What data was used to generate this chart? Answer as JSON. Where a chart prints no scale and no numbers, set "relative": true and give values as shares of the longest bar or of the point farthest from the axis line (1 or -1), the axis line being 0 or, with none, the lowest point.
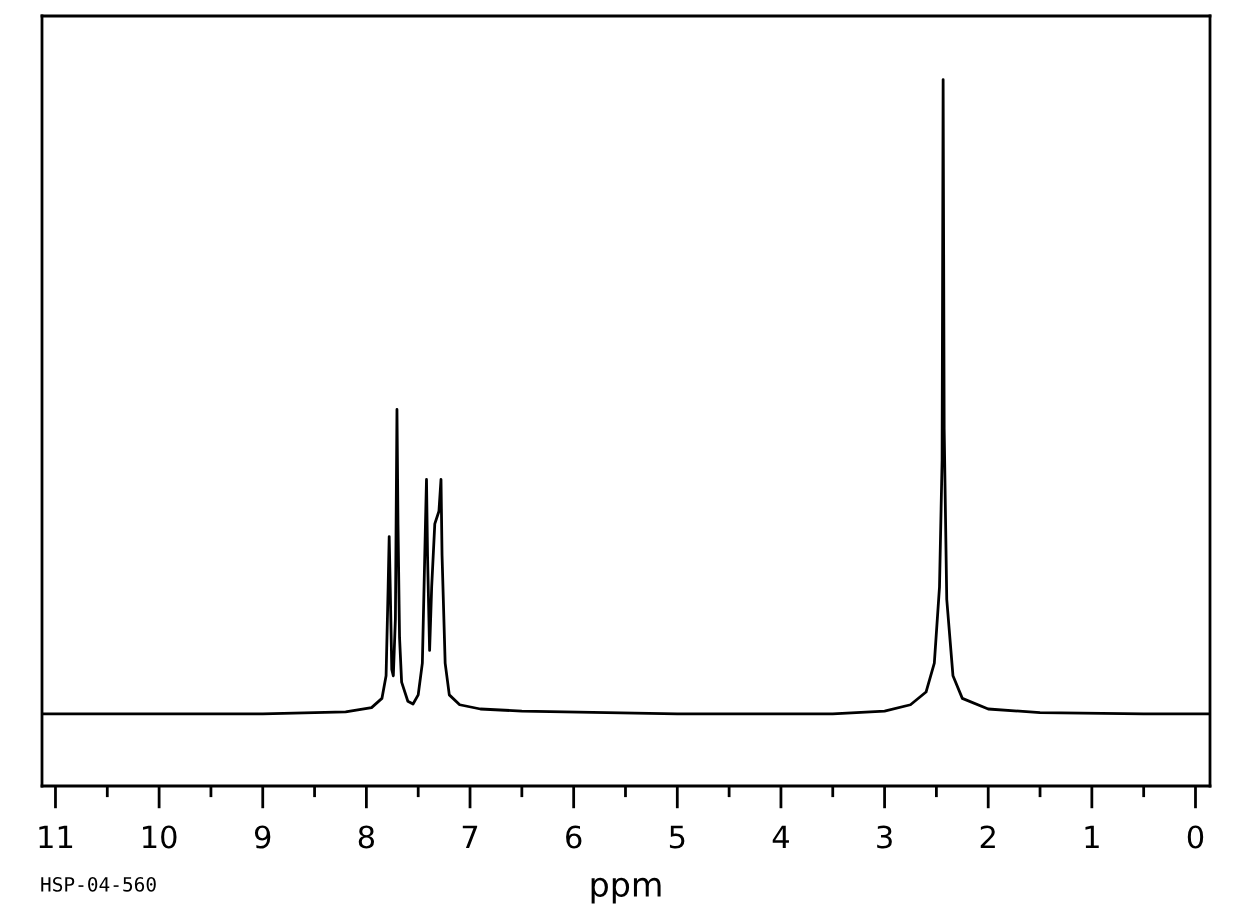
{
  "chart_data": {
    "type": "line",
    "relative": true,
    "xlabel": "ppm",
    "annotations": [
      "HSP-04-560"
    ],
    "xlim": [
      11.13,
      -0.14
    ],
    "xticks": [
      11,
      {
        "value": 10.5,
        "label": null
      },
      10,
      {
        "value": 9.5,
        "label": null
      },
      9,
      {
        "value": 8.5,
        "label": null
      },
      8,
      {
        "value": 7.5,
        "label": null
      },
      7,
      {
        "value": 6.5,
        "label": null
      },
      6,
      {
        "value": 5.5,
        "label": null
      },
      5,
      {
        "value": 4.5,
        "label": null
      },
      4,
      {
        "value": 3.5,
        "label": null
      },
      3,
      {
        "value": 2.5,
        "label": null
      },
      2,
      {
        "value": 1.5,
        "label": null
      },
      1,
      {
        "value": 0.5,
        "label": null
      },
      0
    ],
    "grid": false,
    "legend": false,
    "marker": "none",
    "line_style": "solid",
    "tick_labels": "x",
    "series": [
      {
        "color": "#000000",
        "x": [
          11.13,
          9,
          8.2,
          7.95,
          7.85,
          7.81,
          7.79,
          7.78,
          7.77,
          7.755,
          7.74,
          7.72,
          7.705,
          7.695,
          7.68,
          7.66,
          7.6,
          7.55,
          7.5,
          7.46,
          7.43,
          7.42,
          7.41,
          7.39,
          7.37,
          7.34,
          7.3,
          7.28,
          7.27,
          7.24,
          7.2,
          7.1,
          6.9,
          6.5,
          5,
          3.5,
          3.0,
          2.75,
          2.6,
          2.52,
          2.47,
          2.445,
          2.435,
          2.425,
          2.4,
          2.34,
          2.25,
          2.0,
          1.5,
          0.5,
          -0.14
        ],
        "values": [
          0.102,
          0.102,
          0.105,
          0.111,
          0.124,
          0.156,
          0.282,
          0.353,
          0.282,
          0.165,
          0.156,
          0.237,
          0.533,
          0.371,
          0.21,
          0.147,
          0.12,
          0.116,
          0.129,
          0.174,
          0.371,
          0.434,
          0.327,
          0.192,
          0.282,
          0.371,
          0.389,
          0.434,
          0.327,
          0.174,
          0.129,
          0.115,
          0.109,
          0.106,
          0.102,
          0.102,
          0.106,
          0.115,
          0.133,
          0.174,
          0.282,
          0.461,
          1.0,
          0.506,
          0.264,
          0.156,
          0.124,
          0.109,
          0.104,
          0.102,
          0.102
        ]
      }
    ]
  }
}
